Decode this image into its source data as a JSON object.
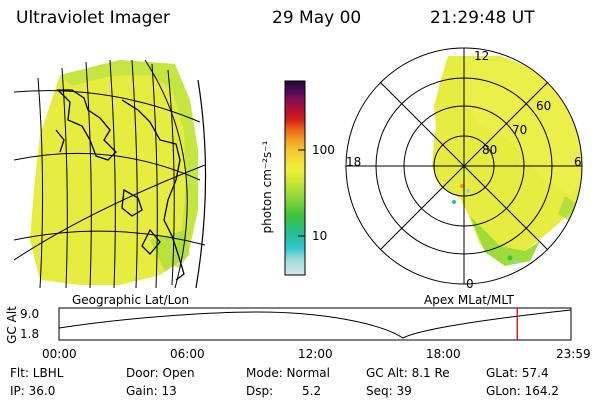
{
  "header": {
    "instrument": "Ultraviolet Imager",
    "date": "29 May 00",
    "time": "21:29:48 UT"
  },
  "colorbar": {
    "unit_label": "photon cm⁻²s⁻¹",
    "ticks": [
      "100",
      "10"
    ],
    "colors": [
      "#d8e6ee",
      "#9edcd8",
      "#2ec7cc",
      "#2bbc94",
      "#38c23c",
      "#8ed63a",
      "#c9e636",
      "#eef03a",
      "#f2e23a",
      "#f5c832",
      "#f39a24",
      "#e85818",
      "#d22018",
      "#b41032",
      "#8a1050",
      "#4a0a58",
      "#200a30"
    ]
  },
  "geo_map": {
    "caption": "Geographic Lat/Lon"
  },
  "polar_plot": {
    "caption": "Apex MLat/MLT",
    "mlt_labels": [
      "12",
      "18",
      "6",
      "0"
    ],
    "lat_labels": [
      "60",
      "70",
      "80"
    ]
  },
  "timeline": {
    "ylabel": "GC Alt",
    "ymax": "9.0",
    "ymin": "1.8",
    "ticks": [
      "00:00",
      "06:00",
      "12:00",
      "18:00",
      "23:59"
    ],
    "cursor_time": "21:29:48",
    "cursor_fraction": 0.895
  },
  "info": {
    "filter": "Flt: LBHL",
    "door": "Door: Open",
    "mode": "Mode: Normal",
    "gc_alt": "GC Alt: 8.1 Re",
    "glat": "GLat: 57.4",
    "ip": "IP: 36.0",
    "gain": "Gain: 13",
    "dsp": "Dsp:",
    "dsp_value": "5.2",
    "seq": "Seq: 39",
    "glon": "GLon: 164.2"
  },
  "colors": {
    "aurora_main": "#e6ec40",
    "aurora_green": "#9edc3a",
    "aurora_cyan": "#8ed6c8",
    "cursor": "#e00000"
  }
}
